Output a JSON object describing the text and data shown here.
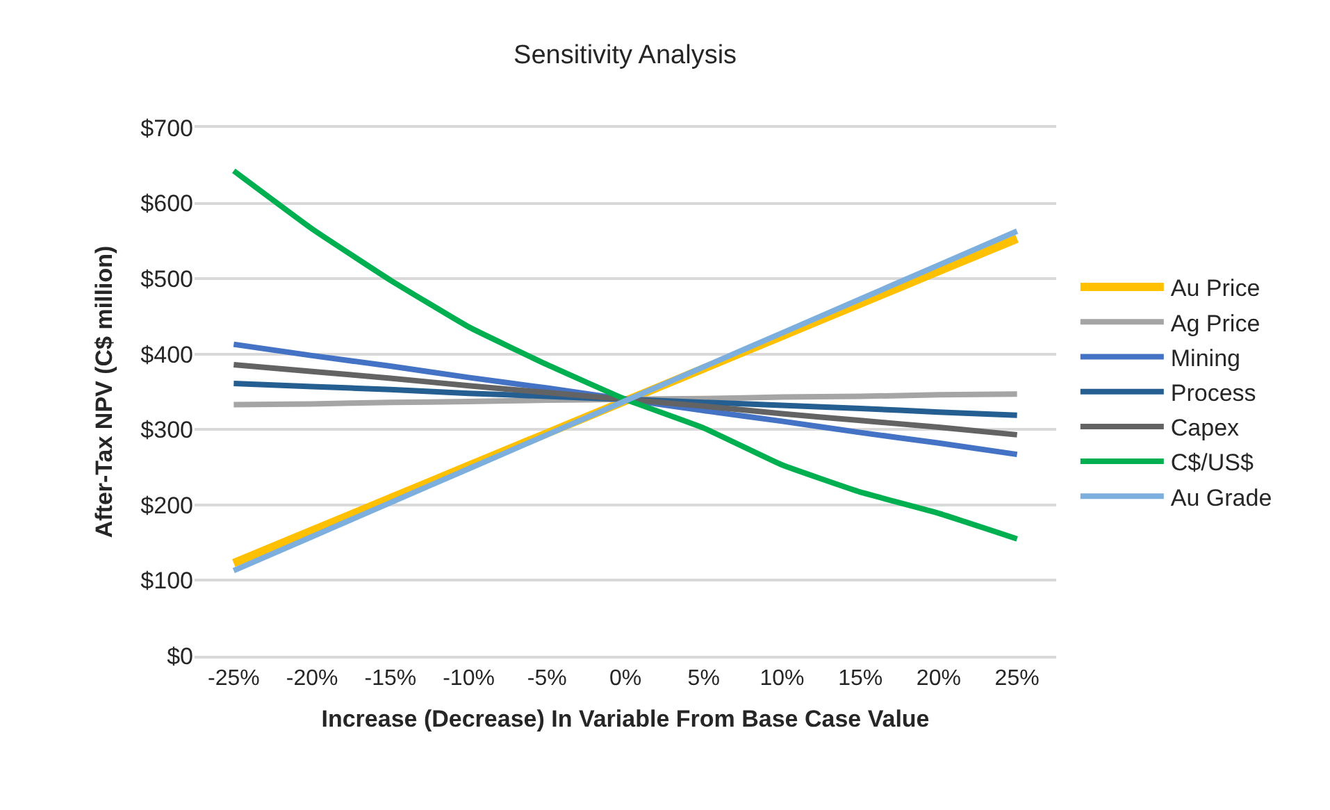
{
  "chart_data": {
    "type": "line",
    "title": "Sensitivity Analysis",
    "xlabel": "Increase (Decrease) In Variable From Base Case Value",
    "ylabel": "After-Tax NPV (C$ million)",
    "categories": [
      "-25%",
      "-20%",
      "-15%",
      "-10%",
      "-5%",
      "0%",
      "5%",
      "10%",
      "15%",
      "20%",
      "25%"
    ],
    "series": [
      {
        "name": "Au Price",
        "color": "#ffc000",
        "values": [
          123,
          166,
          209,
          252,
          295,
          338,
          381,
          424,
          467,
          510,
          553
        ]
      },
      {
        "name": "Ag Price",
        "color": "#a5a5a5",
        "values": [
          333,
          334,
          336,
          337,
          339,
          340,
          341,
          343,
          344,
          346,
          347
        ]
      },
      {
        "name": "Mining",
        "color": "#4472c4",
        "values": [
          413,
          398,
          384,
          369,
          355,
          340,
          325,
          311,
          296,
          282,
          267
        ]
      },
      {
        "name": "Process",
        "color": "#255e91",
        "values": [
          361,
          357,
          353,
          348,
          344,
          340,
          336,
          332,
          328,
          323,
          319
        ]
      },
      {
        "name": "Capex",
        "color": "#636363",
        "values": [
          386,
          377,
          368,
          358,
          349,
          340,
          331,
          321,
          312,
          303,
          293
        ]
      },
      {
        "name": "C$/US$",
        "color": "#00b050",
        "values": [
          643,
          566,
          498,
          436,
          386,
          340,
          302,
          253,
          217,
          189,
          155
        ]
      },
      {
        "name": "Au Grade",
        "color": "#7cafdd",
        "values": [
          113,
          158,
          203,
          248,
          293,
          338,
          383,
          428,
          473,
          518,
          563
        ]
      }
    ],
    "ylim": [
      0,
      700
    ],
    "yticks": [
      {
        "value": 0,
        "label": "$0"
      },
      {
        "value": 100,
        "label": "$100"
      },
      {
        "value": 200,
        "label": "$200"
      },
      {
        "value": 300,
        "label": "$300"
      },
      {
        "value": 400,
        "label": "$400"
      },
      {
        "value": 500,
        "label": "$500"
      },
      {
        "value": 600,
        "label": "$600"
      },
      {
        "value": 700,
        "label": "$700"
      }
    ],
    "grid": "y",
    "legend": "right",
    "marker": "none",
    "line_style": "solid"
  }
}
